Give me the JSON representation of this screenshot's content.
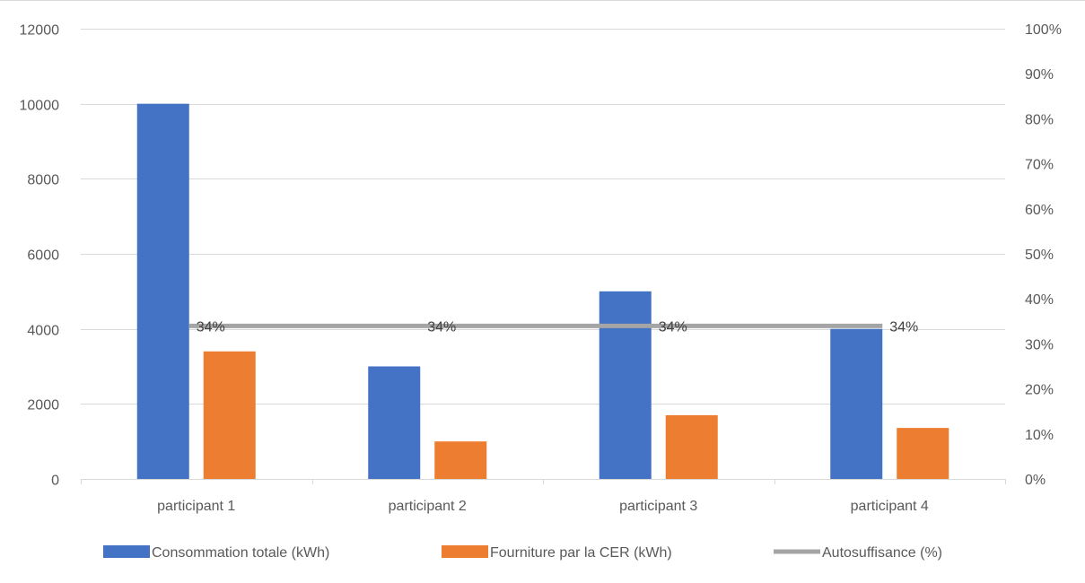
{
  "chart_data": {
    "type": "bar",
    "categories": [
      "participant 1",
      "participant 2",
      "participant 3",
      "participant 4"
    ],
    "series": [
      {
        "name": "Consommation totale (kWh)",
        "kind": "bar",
        "axis": "left",
        "color": "#4472C4",
        "values": [
          10000,
          3000,
          5000,
          4000
        ]
      },
      {
        "name": "Fourniture par la CER (kWh)",
        "kind": "bar",
        "axis": "left",
        "color": "#ED7D31",
        "values": [
          3400,
          1000,
          1700,
          1360
        ]
      },
      {
        "name": "Autosuffisance (%)",
        "kind": "line",
        "axis": "right",
        "color": "#A5A5A5",
        "values": [
          0.34,
          0.34,
          0.34,
          0.34
        ],
        "labels": [
          "34%",
          "34%",
          "34%",
          "34%"
        ]
      }
    ],
    "y_left": {
      "ylim": [
        0,
        12000
      ],
      "ticks": [
        "0",
        "2000",
        "4000",
        "6000",
        "8000",
        "10000",
        "12000"
      ]
    },
    "y_right": {
      "ylim": [
        0,
        1
      ],
      "ticks": [
        "0%",
        "10%",
        "20%",
        "30%",
        "40%",
        "50%",
        "60%",
        "70%",
        "80%",
        "90%",
        "100%"
      ]
    },
    "grid": true,
    "legend_position": "bottom"
  }
}
